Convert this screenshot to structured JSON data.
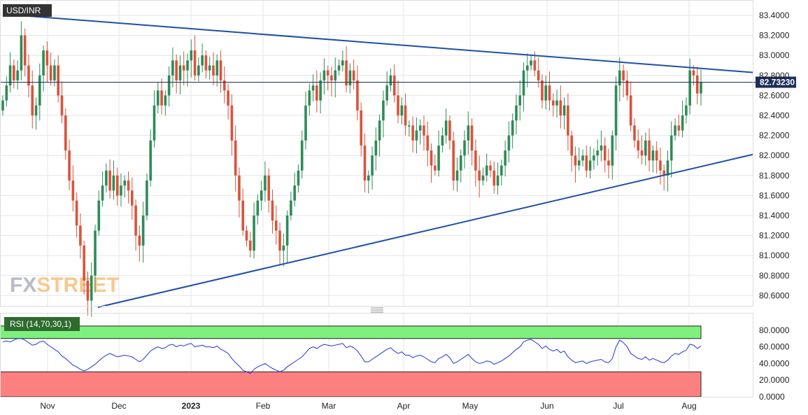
{
  "chart_data": [
    {
      "type": "candlestick",
      "title": "USD/INR",
      "y_ticks": [
        "83.4000",
        "83.2000",
        "83.0000",
        "82.8000",
        "82.6000",
        "82.4000",
        "82.2000",
        "82.0000",
        "81.8000",
        "81.6000",
        "81.4000",
        "81.2000",
        "81.0000",
        "80.8000",
        "80.6000"
      ],
      "ylim": [
        80.5,
        83.5
      ],
      "x_ticks": [
        {
          "label": "Nov",
          "bold": false
        },
        {
          "label": "Dec",
          "bold": false
        },
        {
          "label": "2023",
          "bold": true
        },
        {
          "label": "Feb",
          "bold": false
        },
        {
          "label": "Mar",
          "bold": false
        },
        {
          "label": "Apr",
          "bold": false
        },
        {
          "label": "May",
          "bold": false
        },
        {
          "label": "Jun",
          "bold": false
        },
        {
          "label": "Jul",
          "bold": false
        },
        {
          "label": "Aug",
          "bold": false
        }
      ],
      "last_price": "82.73230",
      "last_price_value": 82.7323,
      "closes": [
        82.55,
        82.7,
        82.9,
        82.75,
        82.85,
        83.2,
        82.9,
        82.7,
        82.4,
        82.5,
        82.8,
        83.05,
        82.9,
        82.75,
        82.9,
        82.6,
        82.4,
        82.05,
        81.75,
        81.55,
        81.3,
        81.1,
        80.75,
        80.55,
        80.8,
        81.25,
        81.55,
        81.7,
        81.85,
        81.65,
        81.8,
        81.6,
        81.7,
        81.75,
        81.65,
        81.5,
        81.2,
        81.1,
        81.4,
        81.75,
        82.15,
        82.5,
        82.65,
        82.5,
        82.6,
        82.8,
        82.95,
        82.75,
        82.9,
        82.85,
        82.95,
        83.05,
        82.8,
        82.9,
        83.0,
        82.85,
        82.9,
        82.8,
        82.95,
        82.75,
        82.65,
        82.5,
        82.15,
        81.8,
        81.55,
        81.25,
        81.15,
        81.05,
        81.4,
        81.55,
        81.65,
        81.8,
        81.55,
        81.35,
        81.25,
        81.05,
        81.1,
        81.4,
        81.55,
        81.7,
        81.85,
        82.15,
        82.5,
        82.65,
        82.7,
        82.55,
        82.75,
        82.85,
        82.8,
        82.75,
        82.85,
        82.9,
        82.95,
        82.7,
        82.85,
        82.75,
        82.45,
        82.1,
        81.75,
        81.8,
        82.0,
        82.15,
        82.35,
        82.55,
        82.7,
        82.8,
        82.6,
        82.4,
        82.5,
        82.3,
        82.3,
        82.15,
        82.25,
        82.3,
        82.2,
        82.05,
        81.9,
        81.85,
        82.1,
        82.2,
        82.35,
        82.15,
        81.75,
        81.85,
        82.0,
        82.15,
        82.3,
        82.05,
        81.85,
        81.75,
        81.8,
        81.9,
        81.85,
        81.7,
        81.8,
        81.9,
        82.05,
        82.2,
        82.35,
        82.5,
        82.6,
        82.85,
        82.9,
        82.95,
        82.85,
        82.75,
        82.55,
        82.7,
        82.55,
        82.5,
        82.55,
        82.4,
        82.5,
        82.2,
        82.0,
        81.9,
        81.95,
        82.0,
        81.85,
        81.95,
        82.0,
        82.05,
        82.1,
        81.95,
        81.9,
        82.2,
        82.7,
        82.85,
        82.75,
        82.6,
        82.3,
        82.15,
        82.05,
        82.0,
        82.15,
        81.95,
        82.05,
        81.95,
        81.85,
        81.8,
        81.95,
        82.2,
        82.3,
        82.25,
        82.4,
        82.5,
        82.85,
        82.8,
        82.62,
        82.73
      ]
    },
    {
      "type": "line",
      "title": "RSI (14,70,30,1)",
      "y_ticks": [
        "80.0000",
        "60.0000",
        "40.0000",
        "20.0000",
        "0.0000"
      ],
      "ylim": [
        0,
        85
      ],
      "overbought": 70,
      "oversold": 30,
      "values": [
        66,
        67,
        66,
        68,
        70,
        70,
        68,
        65,
        62,
        63,
        66,
        67,
        63,
        60,
        57,
        54,
        49,
        46,
        42,
        38,
        36,
        33,
        31,
        33,
        36,
        39,
        43,
        47,
        50,
        52,
        50,
        48,
        49,
        50,
        49,
        48,
        45,
        42,
        45,
        50,
        55,
        58,
        60,
        58,
        59,
        62,
        63,
        60,
        62,
        61,
        63,
        64,
        60,
        61,
        62,
        60,
        60,
        59,
        61,
        57,
        55,
        52,
        46,
        41,
        37,
        32,
        30,
        28,
        33,
        36,
        38,
        40,
        37,
        34,
        32,
        30,
        32,
        36,
        39,
        42,
        45,
        48,
        53,
        58,
        60,
        58,
        61,
        63,
        62,
        61,
        62,
        63,
        64,
        59,
        61,
        59,
        55,
        49,
        42,
        42,
        45,
        48,
        51,
        54,
        57,
        59,
        55,
        52,
        54,
        50,
        50,
        47,
        49,
        50,
        48,
        45,
        42,
        41,
        46,
        48,
        51,
        47,
        40,
        42,
        45,
        48,
        51,
        46,
        42,
        40,
        41,
        43,
        42,
        39,
        41,
        43,
        46,
        49,
        53,
        57,
        60,
        66,
        68,
        69,
        66,
        63,
        58,
        61,
        57,
        55,
        57,
        53,
        55,
        48,
        44,
        41,
        42,
        43,
        40,
        42,
        43,
        44,
        45,
        42,
        41,
        46,
        60,
        68,
        65,
        60,
        52,
        49,
        46,
        45,
        48,
        44,
        46,
        44,
        42,
        41,
        44,
        49,
        52,
        51,
        54,
        56,
        63,
        62,
        58,
        61
      ]
    }
  ],
  "watermark": "FXSTREET"
}
